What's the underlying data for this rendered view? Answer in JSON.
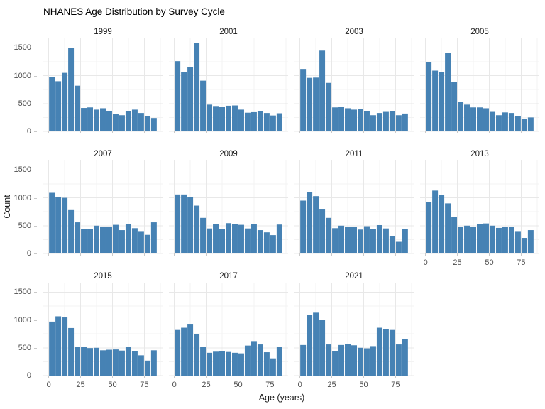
{
  "title": "NHANES Age Distribution by Survey Cycle",
  "chart_data": {
    "type": "bar",
    "subtype": "faceted-histogram",
    "title": "NHANES Age Distribution by Survey Cycle",
    "facet_variable": "Survey Cycle",
    "xlabel": "Age (years)",
    "ylabel": "Count",
    "x_ticks": [
      0,
      25,
      50,
      75
    ],
    "y_ticks": [
      0,
      500,
      1000,
      1500
    ],
    "x_minor_gridlines": [
      12.5,
      37.5,
      62.5,
      87.5
    ],
    "y_minor_gridlines": [
      250,
      750,
      1250
    ],
    "xlim": [
      -4.25,
      89.25
    ],
    "ylim": [
      0,
      1670
    ],
    "bin_width": 5,
    "bin_start": 0,
    "bar_color": "#4682B4",
    "grid_major_color": "#E8E8E8",
    "grid_minor_color": "#F3F3F3",
    "tick_color": "#C9C9C9",
    "axis_text_color": "#4D4D4D",
    "grid": true,
    "legend": "none",
    "layout": {
      "columns": 4,
      "rows": [
        [
          0,
          1,
          2,
          3
        ],
        [
          4,
          5,
          6,
          7
        ],
        [
          8,
          9,
          10,
          null
        ]
      ]
    },
    "panels": [
      {
        "label": "1999",
        "show_x": false,
        "values": [
          980,
          900,
          1050,
          1500,
          820,
          420,
          430,
          390,
          415,
          370,
          310,
          290,
          360,
          390,
          330,
          270,
          240
        ]
      },
      {
        "label": "2001",
        "show_x": false,
        "values": [
          1260,
          1060,
          1150,
          1590,
          910,
          480,
          455,
          435,
          460,
          465,
          390,
          335,
          345,
          365,
          330,
          285,
          325
        ]
      },
      {
        "label": "2003",
        "show_x": false,
        "values": [
          1120,
          960,
          965,
          1450,
          870,
          430,
          445,
          415,
          390,
          395,
          360,
          290,
          330,
          350,
          365,
          290,
          320
        ]
      },
      {
        "label": "2005",
        "show_x": false,
        "values": [
          1240,
          1090,
          1060,
          1410,
          890,
          530,
          480,
          430,
          430,
          415,
          350,
          290,
          340,
          330,
          270,
          230,
          250
        ]
      },
      {
        "label": "2007",
        "show_x": false,
        "values": [
          1090,
          1020,
          1000,
          780,
          560,
          435,
          445,
          500,
          485,
          485,
          515,
          420,
          530,
          455,
          390,
          335,
          560
        ]
      },
      {
        "label": "2009",
        "show_x": false,
        "values": [
          1060,
          1060,
          1010,
          860,
          640,
          450,
          530,
          445,
          545,
          530,
          515,
          450,
          525,
          420,
          380,
          330,
          520
        ]
      },
      {
        "label": "2011",
        "show_x": false,
        "values": [
          950,
          1100,
          1030,
          790,
          640,
          455,
          500,
          480,
          480,
          430,
          490,
          440,
          510,
          450,
          310,
          210,
          440
        ]
      },
      {
        "label": "2013",
        "show_x": true,
        "values": [
          930,
          1130,
          1050,
          900,
          650,
          480,
          500,
          480,
          530,
          540,
          500,
          460,
          480,
          480,
          390,
          280,
          420
        ]
      },
      {
        "label": "2015",
        "show_x": true,
        "values": [
          970,
          1065,
          1045,
          855,
          510,
          515,
          495,
          500,
          455,
          465,
          470,
          450,
          510,
          435,
          365,
          270,
          455
        ]
      },
      {
        "label": "2017",
        "show_x": true,
        "values": [
          820,
          860,
          930,
          740,
          520,
          410,
          430,
          435,
          425,
          410,
          400,
          540,
          620,
          560,
          420,
          310,
          520
        ]
      },
      {
        "label": "2021",
        "show_x": true,
        "values": [
          550,
          1090,
          1130,
          1000,
          560,
          440,
          550,
          570,
          545,
          500,
          490,
          530,
          860,
          840,
          820,
          560,
          650
        ]
      }
    ]
  }
}
